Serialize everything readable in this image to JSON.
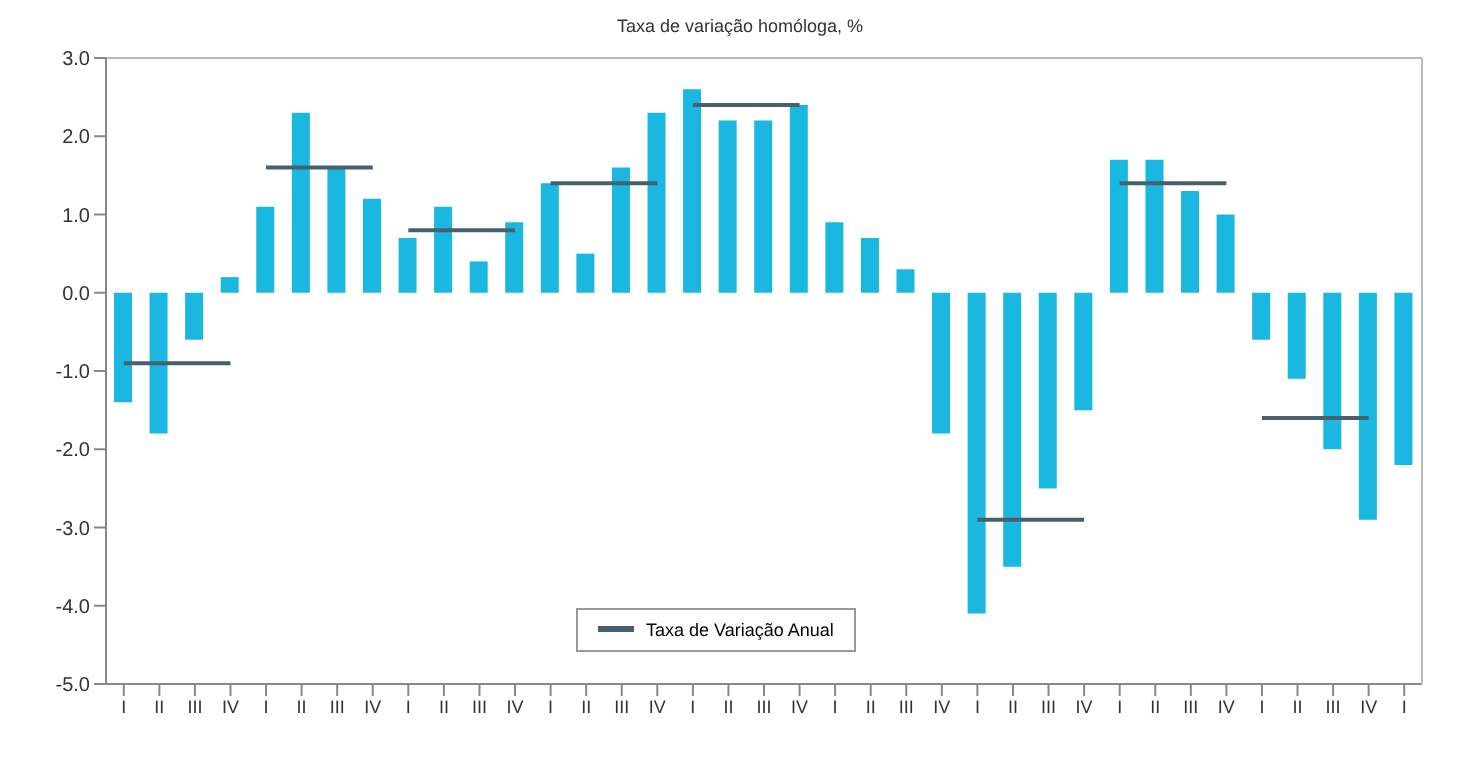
{
  "chart_data": {
    "type": "bar",
    "title": "Taxa de variação homóloga, %",
    "categories": [
      "I",
      "II",
      "III",
      "IV",
      "I",
      "II",
      "III",
      "IV",
      "I",
      "II",
      "III",
      "IV",
      "I",
      "II",
      "III",
      "IV",
      "I",
      "II",
      "III",
      "IV",
      "I",
      "II",
      "III",
      "IV",
      "I",
      "II",
      "III",
      "IV",
      "I",
      "II",
      "III",
      "IV",
      "I",
      "II",
      "III",
      "IV",
      "I"
    ],
    "series": [
      {
        "color": "#1ab8e0",
        "values": [
          -1.4,
          -1.8,
          -0.6,
          0.2,
          1.1,
          2.3,
          1.6,
          1.2,
          0.7,
          1.1,
          0.4,
          0.9,
          1.4,
          0.5,
          1.6,
          2.3,
          2.6,
          2.2,
          2.2,
          2.4,
          0.9,
          0.7,
          0.3,
          -1.8,
          -4.1,
          -3.5,
          -2.5,
          -1.5,
          1.7,
          1.7,
          1.3,
          1.0,
          -0.6,
          -1.1,
          -2.0,
          -2.9,
          -2.2
        ]
      },
      {
        "type": "line",
        "name": "Taxa de Variação Anual",
        "color": "#4a5f6e",
        "values": [
          -0.9,
          -0.9,
          -0.9,
          -0.9,
          1.6,
          1.6,
          1.6,
          1.6,
          0.8,
          0.8,
          0.8,
          0.8,
          1.4,
          1.4,
          1.4,
          1.4,
          2.4,
          2.4,
          2.4,
          2.4,
          null,
          null,
          null,
          null,
          -2.9,
          -2.9,
          -2.9,
          -2.9,
          1.4,
          1.4,
          1.4,
          1.4,
          -1.6,
          -1.6,
          -1.6,
          -1.6,
          null
        ]
      }
    ],
    "ylim": [
      -5,
      3
    ],
    "yticks": [
      {
        "value": 3,
        "label": "3.0"
      },
      {
        "value": 2,
        "label": "2.0"
      },
      {
        "value": 1,
        "label": "1.0"
      },
      {
        "value": 0,
        "label": "0.0"
      },
      {
        "value": -1,
        "label": "-1.0"
      },
      {
        "value": -2,
        "label": "-2.0"
      },
      {
        "value": -3,
        "label": "-3.0"
      },
      {
        "value": -4,
        "label": "-4.0"
      },
      {
        "value": -5,
        "label": "-5.0"
      }
    ],
    "legend": "bottom",
    "marker": "none"
  }
}
